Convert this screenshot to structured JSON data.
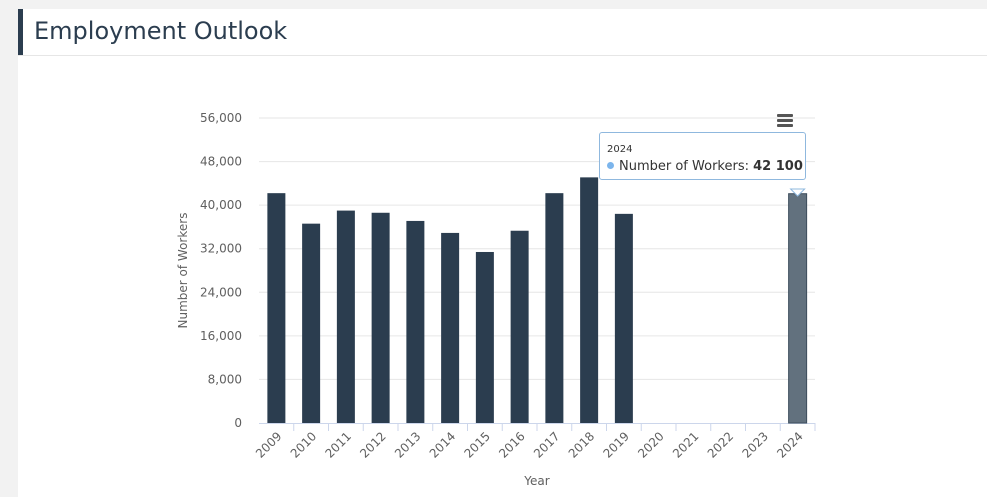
{
  "header": {
    "title": "Employment Outlook"
  },
  "colors": {
    "bar": "#2b3d4f",
    "bar_highlight": "#62717e",
    "tooltip_border": "#8fb8de",
    "tooltip_dot": "#7cb5ec"
  },
  "tooltip": {
    "category": "2024",
    "series_label": "Number of Workers: ",
    "value_text": "42 100"
  },
  "menu": {
    "icon": "hamburger-menu-icon"
  },
  "chart_data": {
    "type": "bar",
    "title": "",
    "xlabel": "Year",
    "ylabel": "Number of Workers",
    "ylim": [
      0,
      56000
    ],
    "yticks": [
      0,
      8000,
      16000,
      24000,
      32000,
      40000,
      48000,
      56000
    ],
    "ytick_labels": [
      "0",
      "8,000",
      "16,000",
      "24,000",
      "32,000",
      "40,000",
      "48,000",
      "56,000"
    ],
    "grid": true,
    "categories": [
      "2009",
      "2010",
      "2011",
      "2012",
      "2013",
      "2014",
      "2015",
      "2016",
      "2017",
      "2018",
      "2019",
      "2020",
      "2021",
      "2022",
      "2023",
      "2024"
    ],
    "series": [
      {
        "name": "Number of Workers",
        "values": [
          42200,
          36600,
          39000,
          38600,
          37100,
          34900,
          31400,
          35300,
          42200,
          45100,
          38400,
          null,
          null,
          null,
          null,
          42100
        ]
      }
    ],
    "highlighted_category": "2024"
  }
}
